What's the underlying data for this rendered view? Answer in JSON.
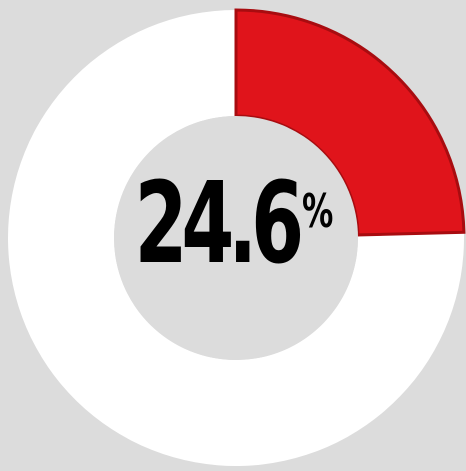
{
  "chart_data": {
    "type": "pie",
    "style": "donut",
    "slices": [
      {
        "value": 24.6,
        "color": "#e0141b"
      },
      {
        "value": 75.4,
        "color": "#ffffff"
      }
    ],
    "label": {
      "number": "24.6",
      "unit": "%"
    },
    "colors": {
      "background": "#dcdcdc",
      "highlight": "#e0141b",
      "remainder": "#ffffff",
      "center": "#dcdcdc"
    },
    "legend": "none",
    "grid": false
  }
}
